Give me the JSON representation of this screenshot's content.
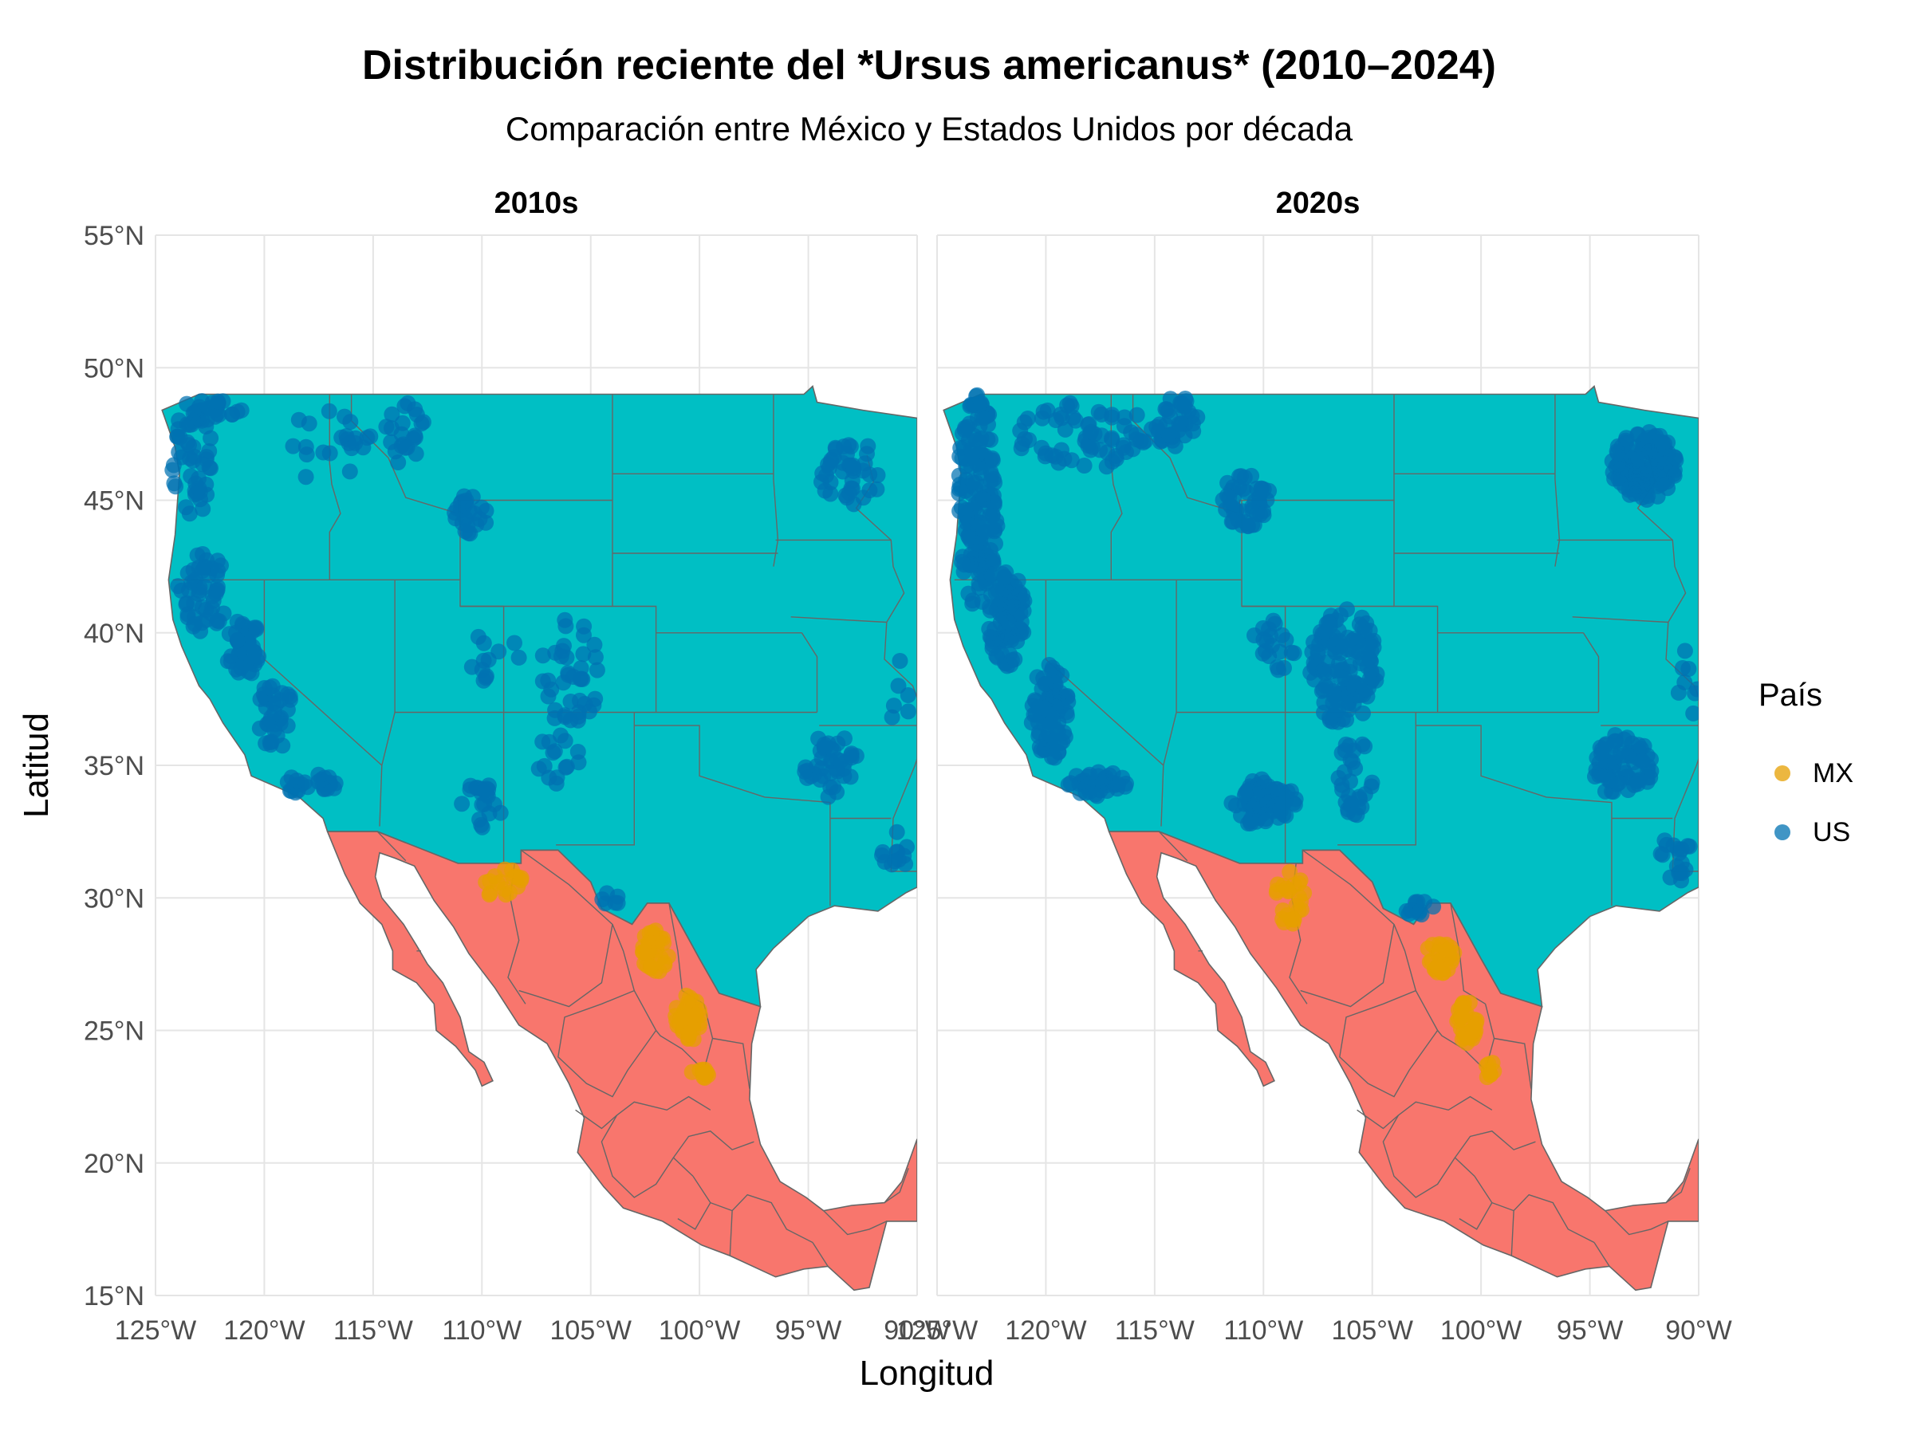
{
  "title": "Distribución reciente del *Ursus americanus* (2010–2024)",
  "subtitle": "Comparación entre México y Estados Unidos por década",
  "colors": {
    "us_fill": "#00BFC4",
    "mx_fill": "#F8766D",
    "border": "#666666",
    "us_point": "#0072B2",
    "mx_point": "#E69F00",
    "grid": "#e5e5e5"
  },
  "chart_data": {
    "type": "scatter",
    "xlabel": "Longitud",
    "ylabel": "Latitud",
    "xlim": [
      -125,
      -90
    ],
    "ylim": [
      15,
      55
    ],
    "x_ticks": [
      -125,
      -120,
      -115,
      -110,
      -105,
      -100,
      -95,
      -90
    ],
    "y_ticks": [
      15,
      20,
      25,
      30,
      35,
      40,
      45,
      50,
      55
    ],
    "x_tick_labels": [
      "125°W",
      "120°W",
      "115°W",
      "110°W",
      "105°W",
      "100°W",
      "95°W",
      "90°W"
    ],
    "y_tick_labels": [
      "15°N",
      "20°N",
      "25°N",
      "30°N",
      "35°N",
      "40°N",
      "45°N",
      "50°N",
      "55°N"
    ],
    "grid": true,
    "legend": {
      "title": "País",
      "placement": "right",
      "entries": [
        {
          "label": "MX",
          "color": "#E69F00"
        },
        {
          "label": "US",
          "color": "#0072B2"
        }
      ]
    },
    "facets": [
      {
        "label": "2010s",
        "clusters": [
          {
            "country": "US",
            "lon": -123.3,
            "lat": 46.5,
            "spread_lon": 1.0,
            "spread_lat": 2.2,
            "count": 45
          },
          {
            "country": "US",
            "lon": -122.8,
            "lat": 41.5,
            "spread_lon": 1.2,
            "spread_lat": 1.5,
            "count": 50
          },
          {
            "country": "US",
            "lon": -121.0,
            "lat": 39.5,
            "spread_lon": 0.8,
            "spread_lat": 1.2,
            "count": 40
          },
          {
            "country": "US",
            "lon": -119.5,
            "lat": 37.0,
            "spread_lon": 0.8,
            "spread_lat": 1.4,
            "count": 35
          },
          {
            "country": "US",
            "lon": -118.0,
            "lat": 34.3,
            "spread_lon": 1.4,
            "spread_lat": 0.4,
            "count": 25
          },
          {
            "country": "US",
            "lon": -122.5,
            "lat": 48.3,
            "spread_lon": 1.5,
            "spread_lat": 0.5,
            "count": 25
          },
          {
            "country": "US",
            "lon": -117.0,
            "lat": 47.0,
            "spread_lon": 2.0,
            "spread_lat": 1.5,
            "count": 22
          },
          {
            "country": "US",
            "lon": -113.5,
            "lat": 47.5,
            "spread_lon": 1.0,
            "spread_lat": 1.3,
            "count": 22
          },
          {
            "country": "US",
            "lon": -110.5,
            "lat": 44.5,
            "spread_lon": 0.8,
            "spread_lat": 0.8,
            "count": 25
          },
          {
            "country": "US",
            "lon": -106.0,
            "lat": 38.5,
            "spread_lon": 1.5,
            "spread_lat": 2.0,
            "count": 40
          },
          {
            "country": "US",
            "lon": -109.5,
            "lat": 39.0,
            "spread_lon": 1.2,
            "spread_lat": 1.2,
            "count": 12
          },
          {
            "country": "US",
            "lon": -110.0,
            "lat": 33.5,
            "spread_lon": 1.0,
            "spread_lat": 1.0,
            "count": 20
          },
          {
            "country": "US",
            "lon": -106.5,
            "lat": 35.0,
            "spread_lon": 1.0,
            "spread_lat": 1.3,
            "count": 15
          },
          {
            "country": "US",
            "lon": -104.0,
            "lat": 30.0,
            "spread_lon": 0.5,
            "spread_lat": 0.4,
            "count": 6
          },
          {
            "country": "US",
            "lon": -93.0,
            "lat": 46.0,
            "spread_lon": 1.5,
            "spread_lat": 1.2,
            "count": 40
          },
          {
            "country": "US",
            "lon": -94.0,
            "lat": 35.0,
            "spread_lon": 1.3,
            "spread_lat": 1.2,
            "count": 40
          },
          {
            "country": "US",
            "lon": -91.0,
            "lat": 31.5,
            "spread_lon": 0.8,
            "spread_lat": 1.0,
            "count": 12
          },
          {
            "country": "US",
            "lon": -90.8,
            "lat": 37.5,
            "spread_lon": 0.5,
            "spread_lat": 1.5,
            "count": 6
          },
          {
            "country": "MX",
            "lon": -109.0,
            "lat": 30.5,
            "spread_lon": 0.9,
            "spread_lat": 0.6,
            "count": 18
          },
          {
            "country": "MX",
            "lon": -102.0,
            "lat": 28.0,
            "spread_lon": 0.7,
            "spread_lat": 0.8,
            "count": 35
          },
          {
            "country": "MX",
            "lon": -100.5,
            "lat": 25.5,
            "spread_lon": 0.6,
            "spread_lat": 0.9,
            "count": 40
          },
          {
            "country": "MX",
            "lon": -100.0,
            "lat": 23.3,
            "spread_lon": 0.4,
            "spread_lat": 0.3,
            "count": 10
          }
        ]
      },
      {
        "label": "2020s",
        "clusters": [
          {
            "country": "US",
            "lon": -123.2,
            "lat": 45.0,
            "spread_lon": 1.0,
            "spread_lat": 4.0,
            "count": 170
          },
          {
            "country": "US",
            "lon": -121.8,
            "lat": 40.5,
            "spread_lon": 0.9,
            "spread_lat": 1.8,
            "count": 90
          },
          {
            "country": "US",
            "lon": -119.8,
            "lat": 37.0,
            "spread_lon": 0.9,
            "spread_lat": 1.8,
            "count": 80
          },
          {
            "country": "US",
            "lon": -117.5,
            "lat": 34.3,
            "spread_lon": 1.5,
            "spread_lat": 0.5,
            "count": 40
          },
          {
            "country": "US",
            "lon": -118.0,
            "lat": 47.5,
            "spread_lon": 3.5,
            "spread_lat": 1.3,
            "count": 70
          },
          {
            "country": "US",
            "lon": -114.0,
            "lat": 48.0,
            "spread_lon": 1.0,
            "spread_lat": 1.0,
            "count": 35
          },
          {
            "country": "US",
            "lon": -110.8,
            "lat": 45.0,
            "spread_lon": 1.2,
            "spread_lat": 1.0,
            "count": 45
          },
          {
            "country": "US",
            "lon": -106.3,
            "lat": 38.7,
            "spread_lon": 1.6,
            "spread_lat": 2.2,
            "count": 130
          },
          {
            "country": "US",
            "lon": -109.5,
            "lat": 39.5,
            "spread_lon": 1.0,
            "spread_lat": 1.0,
            "count": 20
          },
          {
            "country": "US",
            "lon": -110.0,
            "lat": 33.6,
            "spread_lon": 1.5,
            "spread_lat": 0.9,
            "count": 70
          },
          {
            "country": "US",
            "lon": -105.8,
            "lat": 34.5,
            "spread_lon": 0.8,
            "spread_lat": 1.5,
            "count": 30
          },
          {
            "country": "US",
            "lon": -103.0,
            "lat": 29.6,
            "spread_lon": 1.0,
            "spread_lat": 0.3,
            "count": 12
          },
          {
            "country": "US",
            "lon": -92.5,
            "lat": 46.3,
            "spread_lon": 1.5,
            "spread_lat": 1.3,
            "count": 150
          },
          {
            "country": "US",
            "lon": -93.5,
            "lat": 35.0,
            "spread_lon": 1.4,
            "spread_lat": 1.2,
            "count": 70
          },
          {
            "country": "US",
            "lon": -91.0,
            "lat": 31.5,
            "spread_lon": 0.8,
            "spread_lat": 1.0,
            "count": 18
          },
          {
            "country": "US",
            "lon": -90.5,
            "lat": 38.0,
            "spread_lon": 0.5,
            "spread_lat": 1.5,
            "count": 8
          },
          {
            "country": "MX",
            "lon": -108.8,
            "lat": 30.0,
            "spread_lon": 0.7,
            "spread_lat": 1.0,
            "count": 25
          },
          {
            "country": "MX",
            "lon": -101.8,
            "lat": 27.7,
            "spread_lon": 0.8,
            "spread_lat": 0.7,
            "count": 30
          },
          {
            "country": "MX",
            "lon": -100.7,
            "lat": 25.3,
            "spread_lon": 0.5,
            "spread_lat": 0.8,
            "count": 35
          },
          {
            "country": "MX",
            "lon": -99.6,
            "lat": 23.5,
            "spread_lon": 0.4,
            "spread_lat": 0.3,
            "count": 8
          }
        ]
      }
    ]
  }
}
